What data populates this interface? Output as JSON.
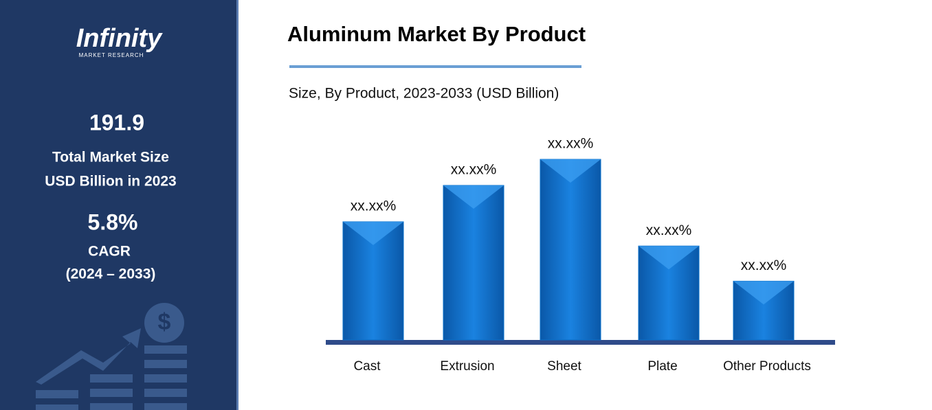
{
  "logo": {
    "name": "Infinity",
    "tagline": "MARKET RESEARCH"
  },
  "sidebar": {
    "market_size": "191.9",
    "market_size_label_1": "Total Market Size",
    "market_size_label_2": "USD Billion in 2023",
    "cagr": "5.8%",
    "cagr_label": "CAGR",
    "cagr_period": "(2024 – 2033)"
  },
  "chart_data": {
    "type": "bar",
    "title": "Aluminum Market By Product",
    "subtitle": "Size, By Product, 2023-2033 (USD Billion)",
    "categories": [
      "Cast",
      "Extrusion",
      "Sheet",
      "Plate",
      "Other Products"
    ],
    "values": [
      19.5,
      25.5,
      29.8,
      15.5,
      9.7
    ],
    "value_labels": [
      "xx.xx%",
      "xx.xx%",
      "xx.xx%",
      "xx.xx%",
      "xx.xx%"
    ],
    "color": "#0a6fc9"
  }
}
